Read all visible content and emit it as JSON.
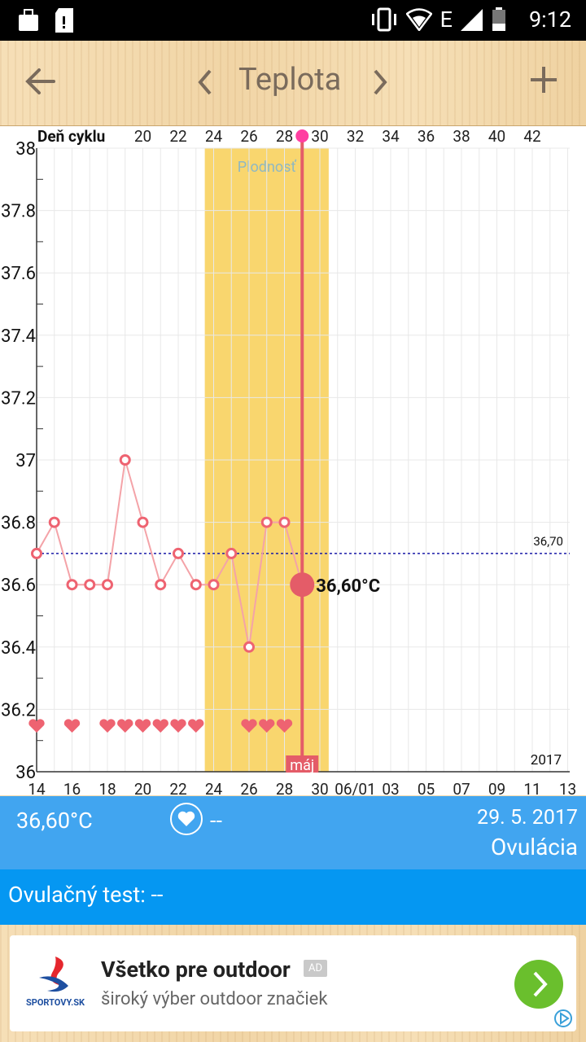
{
  "status": {
    "time": "9:12",
    "network_type": "E"
  },
  "appbar": {
    "title": "Teplota"
  },
  "chart_data": {
    "type": "line",
    "top_axis_label": "Deň cyklu",
    "cycle_days": [
      20,
      22,
      24,
      26,
      28,
      30,
      32,
      34,
      36,
      38,
      40,
      42
    ],
    "y_ticks": [
      "38",
      "37.8",
      "37.6",
      "37.4",
      "37.2",
      "37",
      "36.8",
      "36.6",
      "36.4",
      "36.2",
      "36"
    ],
    "x_date_labels": [
      "14",
      "16",
      "18",
      "20",
      "22",
      "24",
      "26",
      "28",
      "30",
      "06/01",
      "03",
      "05",
      "07",
      "09",
      "11",
      "13"
    ],
    "ylim": [
      36,
      38
    ],
    "series": [
      {
        "points": [
          {
            "x": "14",
            "y": 36.7
          },
          {
            "x": "15",
            "y": 36.8
          },
          {
            "x": "16",
            "y": 36.6
          },
          {
            "x": "17",
            "y": 36.6
          },
          {
            "x": "18",
            "y": 36.6
          },
          {
            "x": "19",
            "y": 37.0
          },
          {
            "x": "20",
            "y": 36.8
          },
          {
            "x": "21",
            "y": 36.6
          },
          {
            "x": "22",
            "y": 36.7
          },
          {
            "x": "23",
            "y": 36.6
          },
          {
            "x": "24",
            "y": 36.6
          },
          {
            "x": "25",
            "y": 36.7
          },
          {
            "x": "26",
            "y": 36.4
          },
          {
            "x": "27",
            "y": 36.8
          },
          {
            "x": "28",
            "y": 36.8
          },
          {
            "x": "29",
            "y": 36.6
          }
        ]
      }
    ],
    "heart_days": [
      "14",
      "16",
      "18",
      "19",
      "20",
      "21",
      "22",
      "23",
      "26",
      "27",
      "28"
    ],
    "fertile_window": {
      "label": "Plodnosť",
      "from": "23.5",
      "to": "30.5"
    },
    "baseline": {
      "value": 36.7,
      "label": "36,70"
    },
    "selected": {
      "x": "29",
      "label": "36,60°C"
    },
    "month_label": "máj",
    "year_label": "2017",
    "colors": {
      "line": "#f4a3a8",
      "marker": "#ee6371",
      "fertile": "#f9d66e",
      "baseline": "#1a1aa8",
      "selected": "#e45c68"
    }
  },
  "info": {
    "temp": "36,60°C",
    "intercourse": "--",
    "date": "29. 5. 2017",
    "phase": "Ovulácia"
  },
  "test": {
    "label": "Ovulačný test: --"
  },
  "ad": {
    "brand": "SPORTOVY.SK",
    "headline": "Všetko pre outdoor",
    "badge": "AD",
    "subtitle": "široký výber outdoor značiek"
  }
}
